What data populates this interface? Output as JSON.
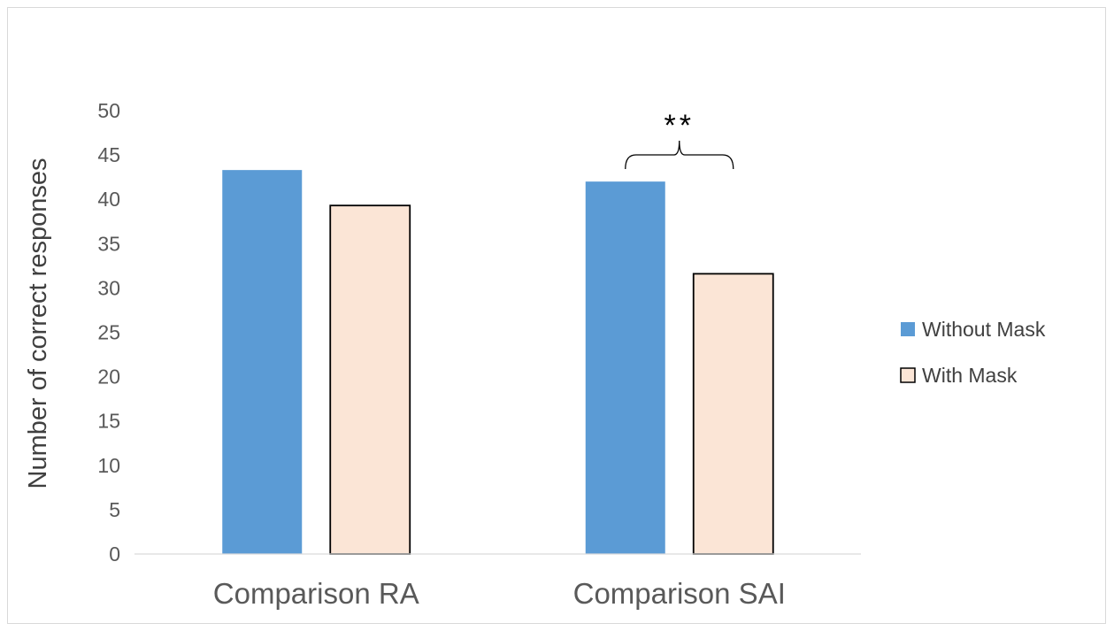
{
  "chart_data": {
    "type": "bar",
    "title": "",
    "xlabel": "",
    "ylabel": "Number of correct responses",
    "categories": [
      "Comparison RA",
      "Comparison SAI"
    ],
    "series": [
      {
        "name": "Without Mask",
        "values": [
          43.3,
          42.0
        ],
        "color": "#5b9bd5",
        "stroke": "none"
      },
      {
        "name": "With Mask",
        "values": [
          39.3,
          31.6
        ],
        "color": "#fbe5d6",
        "stroke": "#000000"
      }
    ],
    "ylim": [
      0,
      50
    ],
    "yticks": [
      "0",
      "5",
      "10",
      "15",
      "20",
      "25",
      "30",
      "35",
      "40",
      "45",
      "50"
    ],
    "grid": false,
    "legend_position": "right",
    "annotations": [
      {
        "text": "**",
        "category": "Comparison SAI",
        "type": "significance-bracket"
      }
    ]
  }
}
